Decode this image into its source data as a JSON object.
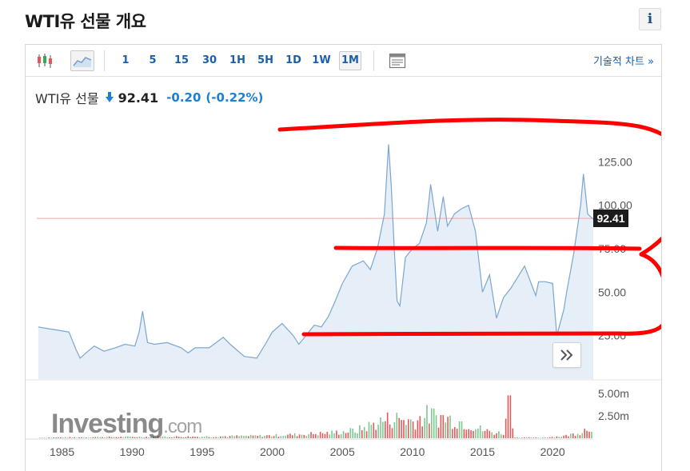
{
  "page": {
    "title": "WTI유 선물 개요",
    "info_label": "i"
  },
  "toolbar": {
    "candles_icon": "candlestick-icon",
    "area_icon": "area-chart-icon",
    "timeframes": [
      "1",
      "5",
      "15",
      "30",
      "1H",
      "5H",
      "1D",
      "1W",
      "1M"
    ],
    "active_timeframe": "1M",
    "layout_icon": "layout-icon",
    "tech_chart_label": "기술적 차트 »"
  },
  "quote": {
    "name": "WTI유 선물",
    "price": "92.41",
    "change": "-0.20",
    "change_pct": "(-0.22%)",
    "direction": "down"
  },
  "colors": {
    "accent_blue": "#1b5eab",
    "change_blue": "#1b7fd6",
    "line": "#7aa6cf",
    "area": "#e6eff7",
    "current_price_line": "#f2a3a3",
    "volume_up": "#7ec78f",
    "volume_down": "#e05a5a",
    "annotation": "#ff0000"
  },
  "watermark": {
    "brand": "Investing",
    "suffix": ".com"
  },
  "chart_data": {
    "type": "area",
    "title": "",
    "xlabel": "",
    "ylabel": "",
    "x_ticks": [
      "1985",
      "1990",
      "1995",
      "2000",
      "2005",
      "2010",
      "2015",
      "2020"
    ],
    "y_ticks": [
      "25.00",
      "50.00",
      "75.00",
      "100.00",
      "125.00"
    ],
    "y_tick_values": [
      25,
      50,
      75,
      100,
      125
    ],
    "xlim": [
      1983.2,
      2022.9
    ],
    "ylim": [
      0,
      150
    ],
    "current_price": 92.41,
    "current_price_label": "92.41",
    "grid": false,
    "series": [
      {
        "x": [
          1983.3,
          1984.0,
          1984.8,
          1985.5,
          1986.0,
          1986.3,
          1986.7,
          1987.3,
          1988.0,
          1988.8,
          1989.5,
          1990.2,
          1990.5,
          1990.75,
          1991.1,
          1991.6,
          1992.5,
          1993.5,
          1994.0,
          1994.5,
          1995.5,
          1996.5,
          1997.0,
          1998.0,
          1998.9,
          1999.5,
          2000.0,
          2000.7,
          2001.5,
          2001.9,
          2002.5,
          2003.0,
          2003.5,
          2004.0,
          2004.5,
          2005.0,
          2005.7,
          2006.5,
          2007.0,
          2007.5,
          2008.0,
          2008.3,
          2008.5,
          2008.7,
          2008.9,
          2009.1,
          2009.5,
          2010.0,
          2010.5,
          2011.0,
          2011.3,
          2011.8,
          2012.2,
          2012.5,
          2013.0,
          2013.5,
          2014.0,
          2014.5,
          2015.0,
          2015.5,
          2016.0,
          2016.5,
          2017.0,
          2018.0,
          2018.8,
          2019.0,
          2019.5,
          2020.0,
          2020.3,
          2020.8,
          2021.0,
          2021.5,
          2022.0,
          2022.2,
          2022.5,
          2022.9
        ],
        "values": [
          30,
          29,
          28,
          27,
          17,
          12,
          15,
          19,
          16,
          18,
          20,
          19,
          27,
          39,
          21,
          20,
          21,
          18,
          15,
          18,
          18,
          24,
          20,
          13,
          12,
          20,
          27,
          32,
          25,
          20,
          26,
          31,
          30,
          36,
          45,
          55,
          65,
          68,
          63,
          75,
          95,
          135,
          110,
          75,
          45,
          42,
          70,
          75,
          78,
          90,
          112,
          85,
          105,
          88,
          95,
          98,
          100,
          85,
          50,
          60,
          35,
          47,
          52,
          65,
          48,
          56,
          56,
          55,
          25,
          40,
          50,
          72,
          100,
          118,
          95,
          92
        ]
      }
    ],
    "volume": {
      "y_ticks": [
        "2.50m",
        "5.00m"
      ],
      "y_tick_values": [
        2.5,
        5.0
      ],
      "ylim": [
        0,
        6
      ],
      "x": [
        1983.3,
        1990.0,
        1995.0,
        2000.0,
        2004.0,
        2006.0,
        2008.0,
        2009.0,
        2010.0,
        2011.0,
        2012.0,
        2013.0,
        2014.0,
        2015.0,
        2016.0,
        2016.5,
        2016.8,
        2017.2,
        2018.0,
        2019.0,
        2020.0,
        2021.0,
        2022.0,
        2022.9
      ],
      "values": [
        0.1,
        0.2,
        0.25,
        0.4,
        0.8,
        1.2,
        2.8,
        3.0,
        2.6,
        3.5,
        3.2,
        2.8,
        2.2,
        1.2,
        0.8,
        0.9,
        4.8,
        0.2,
        0.1,
        0.1,
        0.2,
        0.4,
        1.0,
        2.2
      ]
    }
  }
}
